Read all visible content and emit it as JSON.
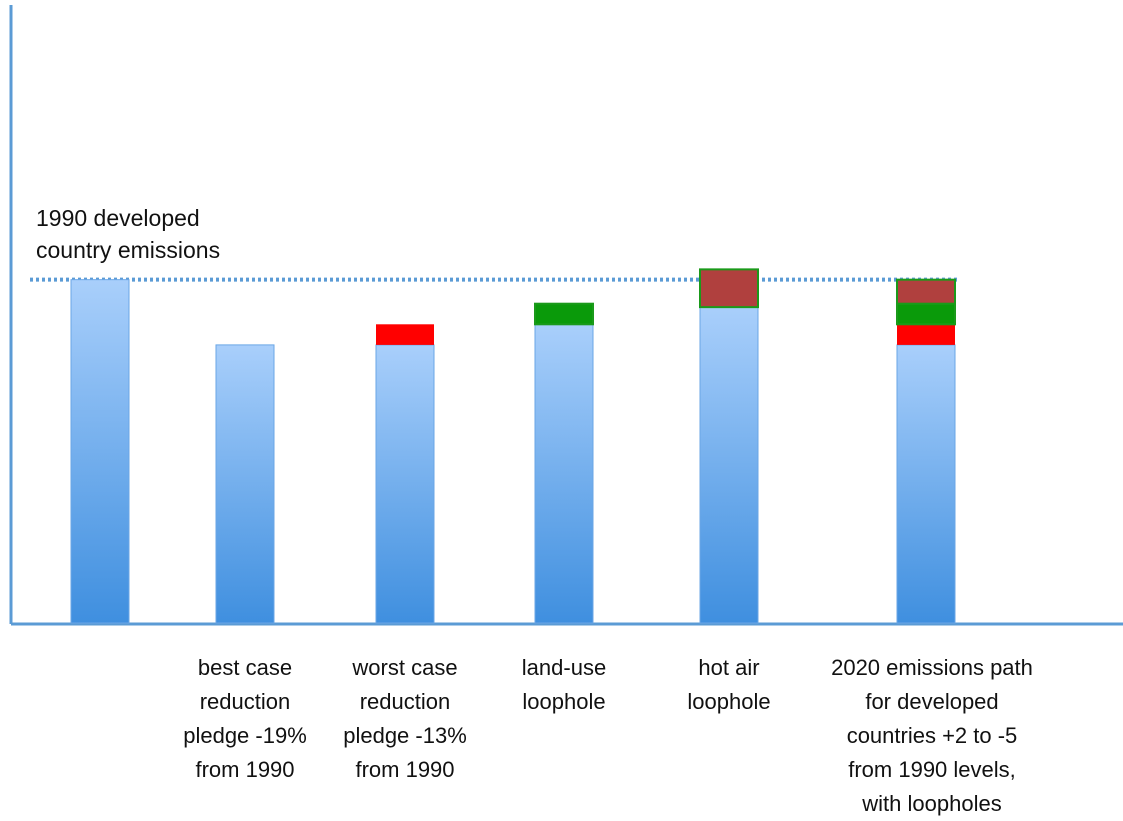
{
  "chart_data": {
    "type": "bar",
    "stacked": true,
    "categories": [
      "",
      "best case\nreduction\npledge -19%\nfrom 1990",
      "worst case\nreduction\npledge -13%\nfrom 1990",
      "land-use\nloophole",
      "hot air\nloophole",
      "2020 emissions path\nfor developed\ncountries +2 to -5\nfrom 1990 levels,\nwith loopholes"
    ],
    "series": [
      {
        "values": [
          100,
          81,
          81,
          87,
          92,
          81
        ],
        "color": "#4f9ee8"
      },
      {
        "values": [
          0,
          0,
          6,
          0,
          0,
          6
        ],
        "color": "#ff0000"
      },
      {
        "values": [
          0,
          0,
          0,
          6,
          0,
          6
        ],
        "color": "#0a9a0a"
      },
      {
        "values": [
          0,
          0,
          0,
          0,
          11,
          7
        ],
        "color": "#b0403e"
      }
    ],
    "reference_line": {
      "value": 100,
      "label": "1990 developed\ncountry emissions",
      "style": "dotted",
      "color": "#5b9bd5"
    },
    "ylim": [
      0,
      180
    ],
    "grid": false,
    "axis_color": "#5b9bd5"
  }
}
